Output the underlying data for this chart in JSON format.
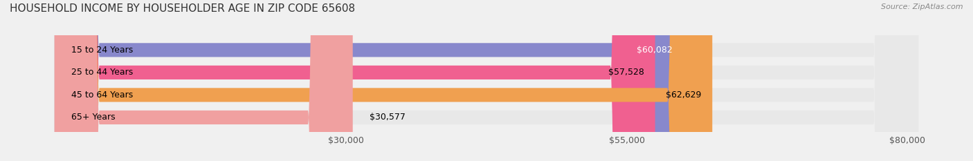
{
  "title": "HOUSEHOLD INCOME BY HOUSEHOLDER AGE IN ZIP CODE 65608",
  "source": "Source: ZipAtlas.com",
  "categories": [
    "15 to 24 Years",
    "25 to 44 Years",
    "45 to 64 Years",
    "65+ Years"
  ],
  "values": [
    60082,
    57528,
    62629,
    30577
  ],
  "bar_colors": [
    "#8888cc",
    "#f06090",
    "#f0a050",
    "#f0a0a0"
  ],
  "value_labels": [
    "$60,082",
    "$57,528",
    "$62,629",
    "$30,577"
  ],
  "x_ticks": [
    30000,
    55000,
    80000
  ],
  "x_tick_labels": [
    "$30,000",
    "$55,000",
    "$80,000"
  ],
  "xlim": [
    0,
    85000
  ],
  "background_color": "#f0f0f0",
  "bar_bg_color": "#e8e8e8",
  "title_fontsize": 11,
  "label_fontsize": 9,
  "tick_fontsize": 9,
  "source_fontsize": 8
}
